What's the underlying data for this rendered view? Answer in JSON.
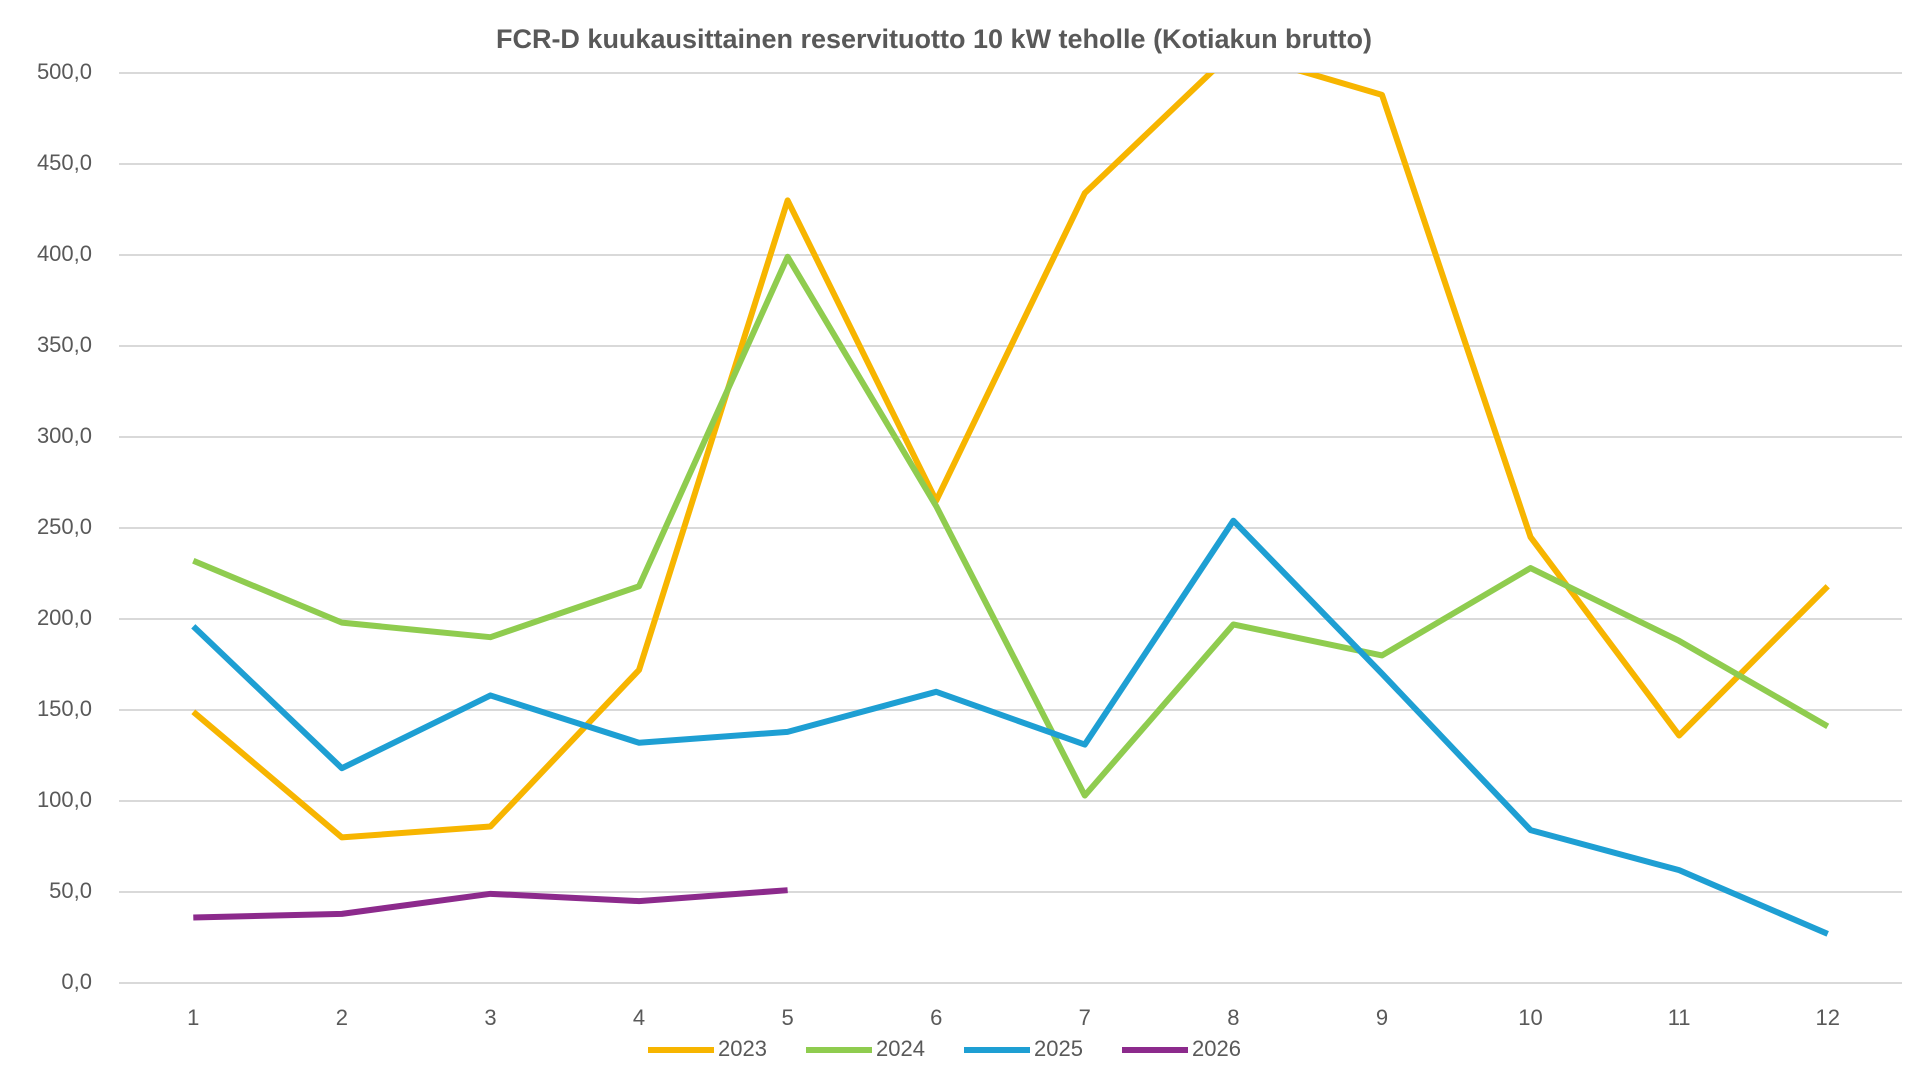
{
  "chart_data": {
    "type": "line",
    "title": "FCR-D kuukausittainen reservituotto 10 kW teholle (Kotiakun brutto)",
    "categories": [
      "1",
      "2",
      "3",
      "4",
      "5",
      "6",
      "7",
      "8",
      "9",
      "10",
      "11",
      "12"
    ],
    "series": [
      {
        "name": "2023",
        "color": "#f7b500",
        "values": [
          149,
          80,
          86,
          172,
          430,
          265,
          434,
          512,
          488,
          245,
          136,
          218
        ]
      },
      {
        "name": "2024",
        "color": "#8fcc4f",
        "values": [
          232,
          198,
          190,
          218,
          399,
          262,
          103,
          197,
          180,
          228,
          188,
          141
        ]
      },
      {
        "name": "2025",
        "color": "#1e9fd3",
        "values": [
          196,
          118,
          158,
          132,
          138,
          160,
          131,
          254,
          170,
          84,
          62,
          27
        ]
      },
      {
        "name": "2026",
        "color": "#8c2a8c",
        "values": [
          36,
          38,
          49,
          45,
          51,
          null,
          null,
          null,
          null,
          null,
          null,
          null
        ]
      }
    ],
    "ylim": [
      0,
      500
    ],
    "yticks": [
      {
        "value": 0,
        "label": "0,0"
      },
      {
        "value": 50,
        "label": "50,0"
      },
      {
        "value": 100,
        "label": "100,0"
      },
      {
        "value": 150,
        "label": "150,0"
      },
      {
        "value": 200,
        "label": "200,0"
      },
      {
        "value": 250,
        "label": "250,0"
      },
      {
        "value": 300,
        "label": "300,0"
      },
      {
        "value": 350,
        "label": "350,0"
      },
      {
        "value": 400,
        "label": "400,0"
      },
      {
        "value": 450,
        "label": "450,0"
      },
      {
        "value": 500,
        "label": "500,0"
      }
    ],
    "grid": true,
    "legend": "bottom"
  }
}
